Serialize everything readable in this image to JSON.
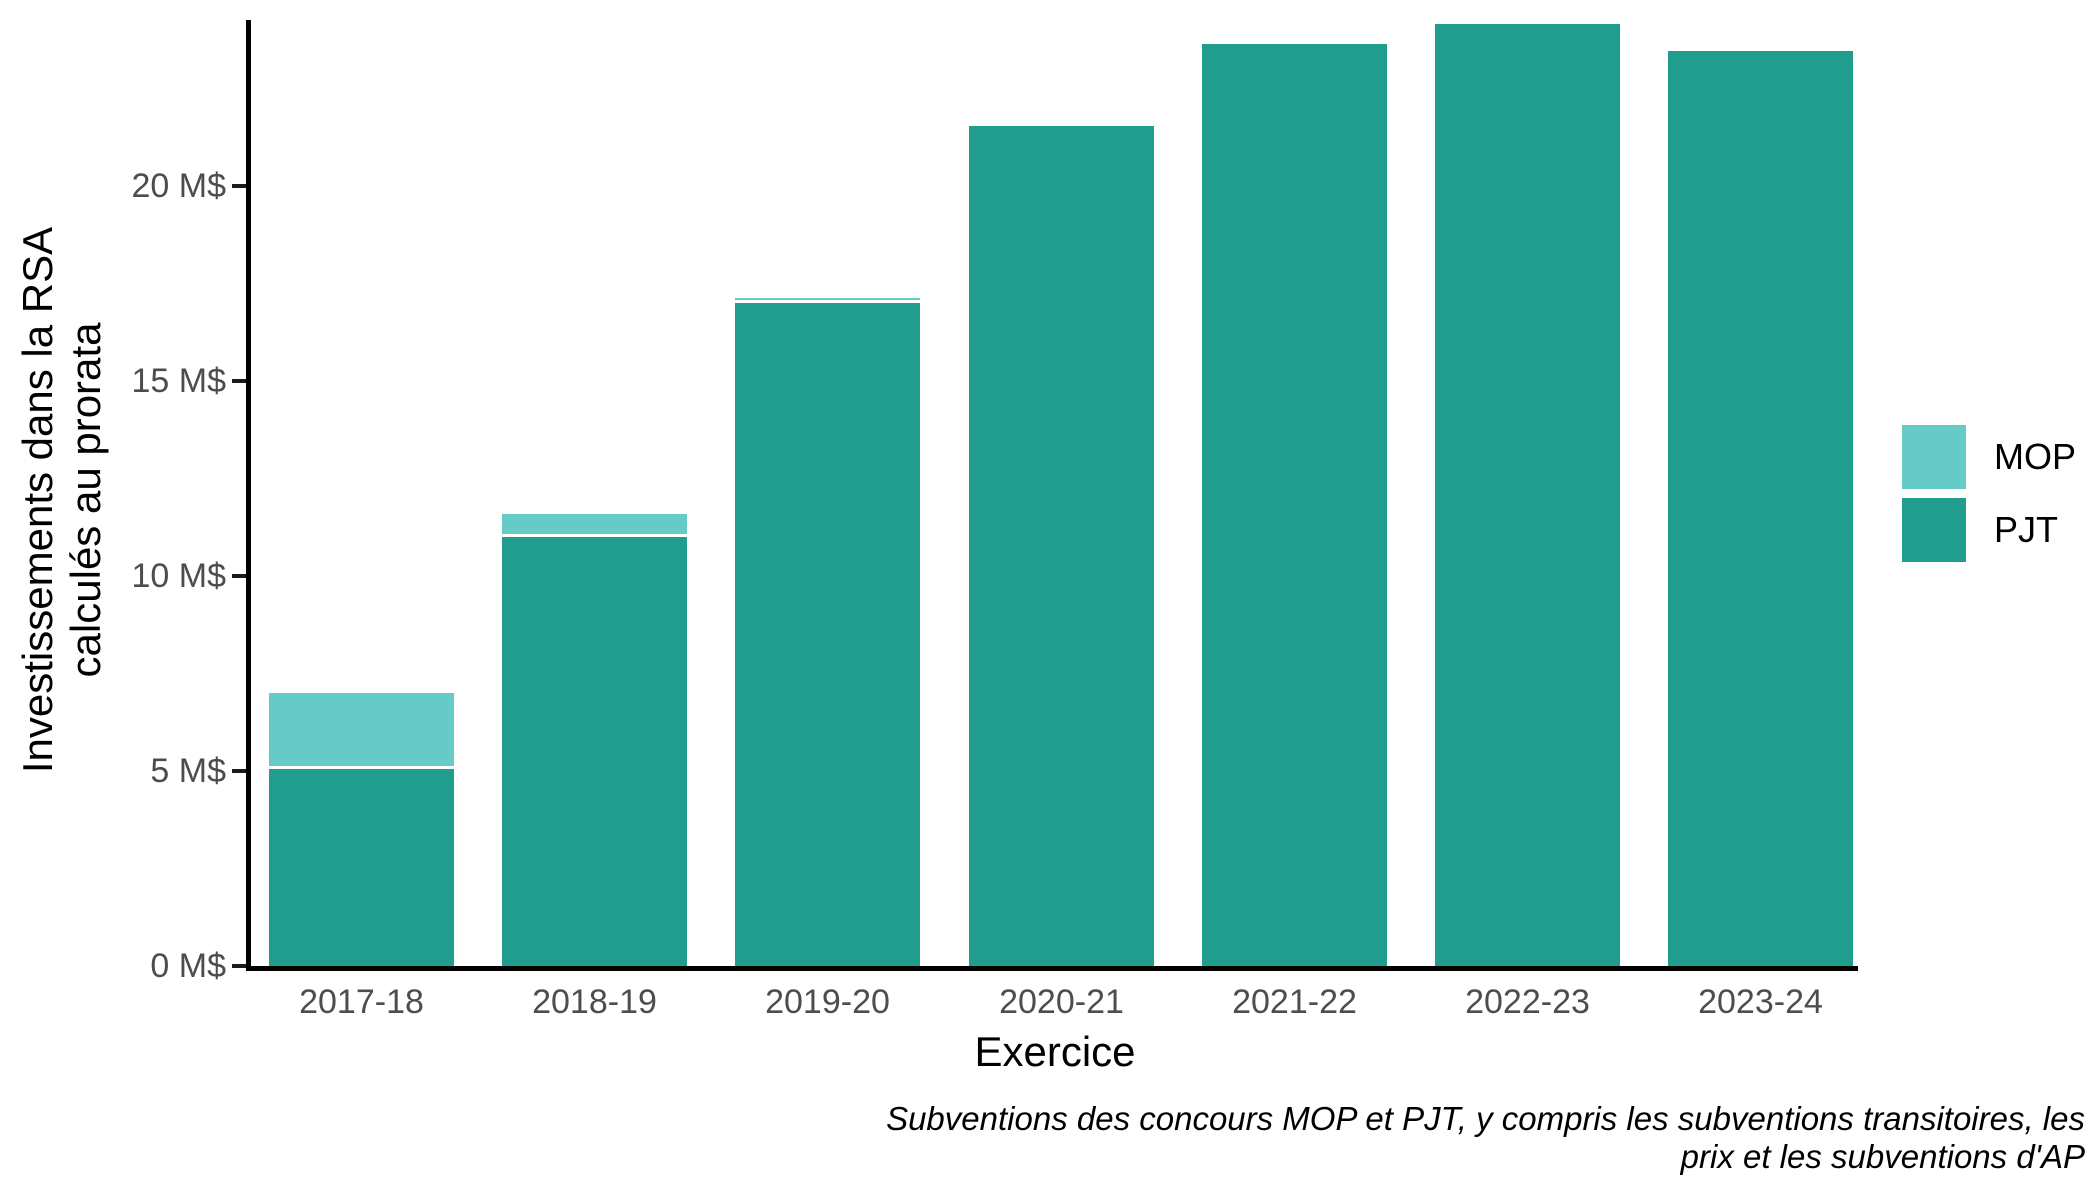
{
  "chart_data": {
    "type": "bar",
    "stacked": true,
    "title": "",
    "xlabel": "Exercice",
    "ylabel_line1": "Investissements dans la RSA",
    "ylabel_line2": "calculés au prorata",
    "categories": [
      "2017-18",
      "2018-19",
      "2019-20",
      "2020-21",
      "2021-22",
      "2022-23",
      "2023-24"
    ],
    "series": [
      {
        "name": "MOP",
        "color": "#66cbc6",
        "values": [
          1.95,
          0.6,
          0.13,
          0,
          0,
          0,
          0
        ]
      },
      {
        "name": "PJT",
        "color": "#219d8d",
        "values": [
          5.05,
          11.0,
          17.0,
          21.55,
          23.65,
          24.15,
          23.45
        ]
      }
    ],
    "y_ticks": [
      {
        "value": 0,
        "label": "0 M$"
      },
      {
        "value": 5,
        "label": "5 M$"
      },
      {
        "value": 10,
        "label": "10 M$"
      },
      {
        "value": 15,
        "label": "15 M$"
      },
      {
        "value": 20,
        "label": "20 M$"
      }
    ],
    "ylim": [
      0,
      24.2
    ],
    "grid": false,
    "legend_position": "right",
    "caption_line1": "Subventions des concours MOP et PJT, y compris les subventions transitoires, les",
    "caption_line2": "prix et les subventions d'AP"
  },
  "colors": {
    "mop": "#66cbc6",
    "pjt": "#219d8d",
    "axis_line": "#000000",
    "tick_mark": "#1a1a1a",
    "tick_label": "#4d4d4d",
    "title_text": "#000000",
    "background": "#ffffff"
  }
}
